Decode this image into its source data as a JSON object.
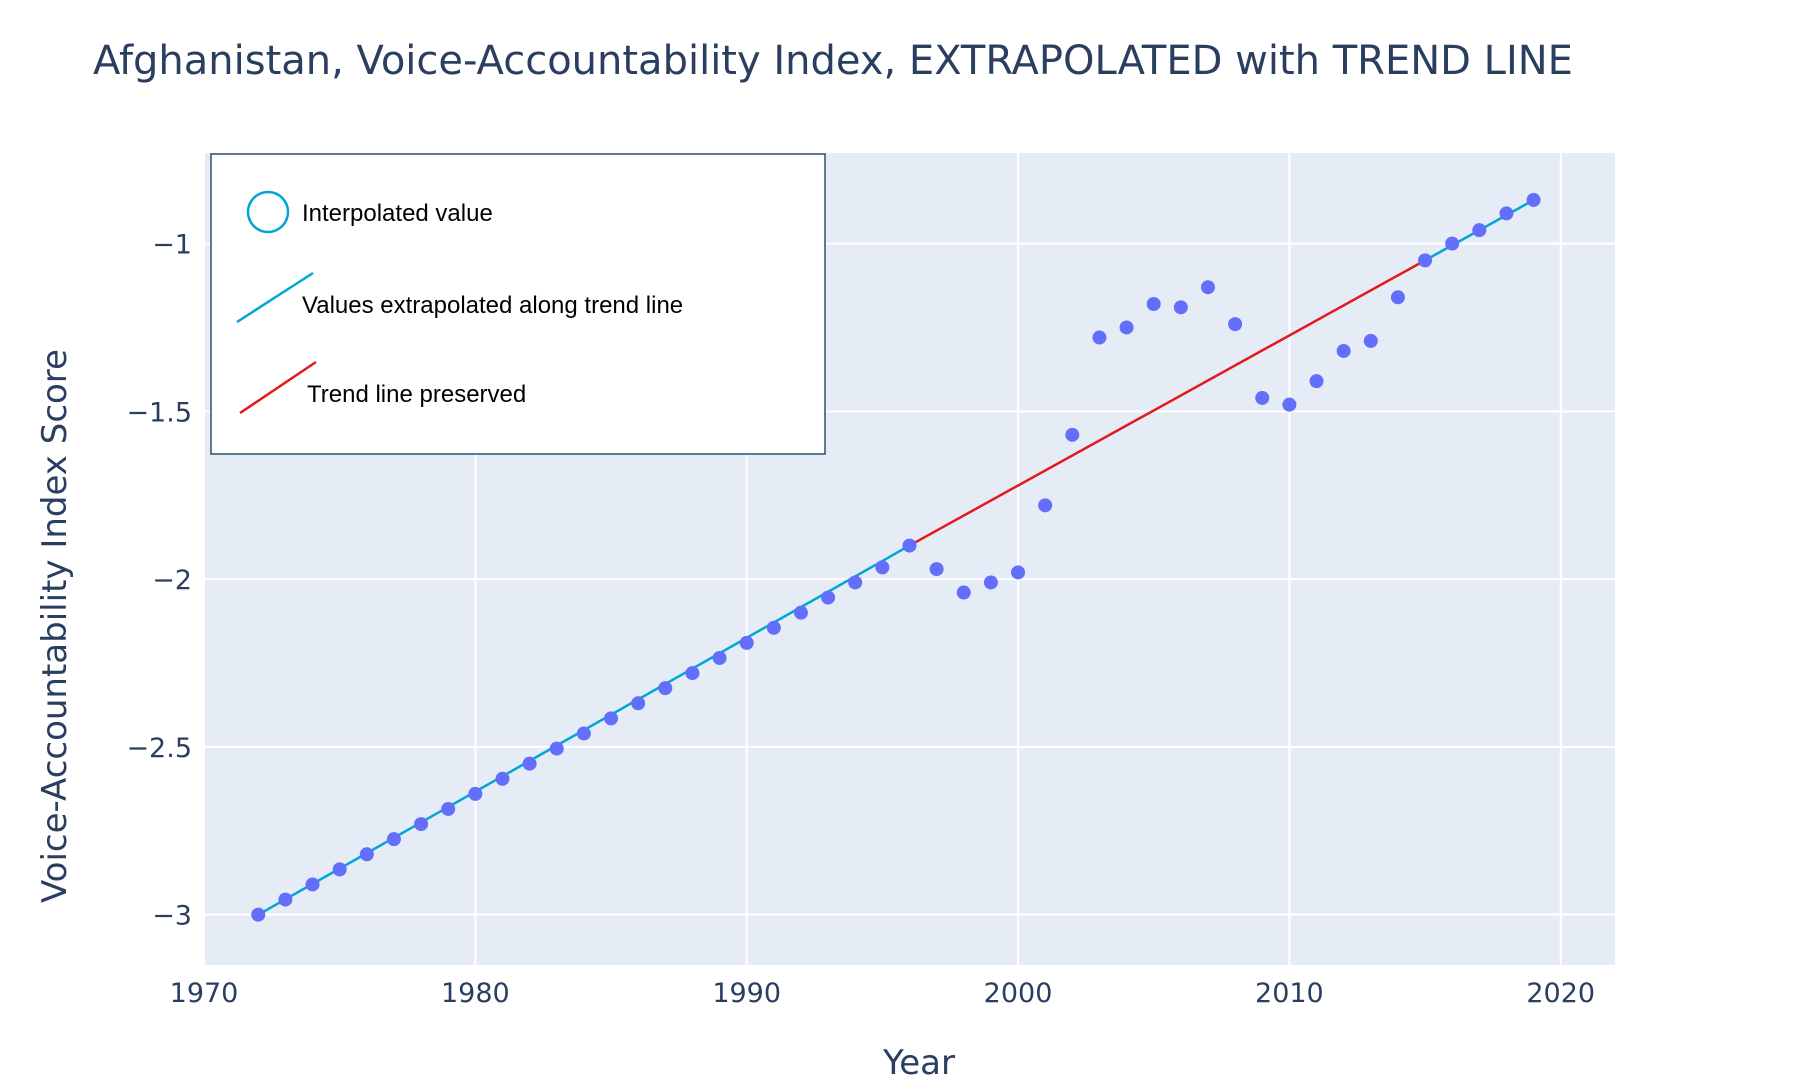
{
  "chart_data": {
    "type": "scatter",
    "title": "Afghanistan, Voice-Accountability Index, EXTRAPOLATED with TREND LINE",
    "xlabel": "Year",
    "ylabel": "Voice-Accountability Index Score",
    "xlim": [
      1970,
      2022
    ],
    "ylim": [
      -3.15,
      -0.73
    ],
    "xticks": [
      1970,
      1980,
      1990,
      2000,
      2010,
      2020
    ],
    "yticks": [
      -3,
      -2.5,
      -2,
      -1.5,
      -1
    ],
    "ytick_labels": [
      "−3",
      "−2.5",
      "−2",
      "−1.5",
      "−1"
    ],
    "grid": true,
    "legend_position": "top-left",
    "colors": {
      "points": "#636efa",
      "extrapolated_line": "#00a6d6",
      "trend_line": "#e31a1c",
      "plot_background": "#e5ecf6",
      "grid": "#ffffff"
    },
    "series": [
      {
        "name": "Interpolated value",
        "mode": "markers",
        "x": [
          1972,
          1973,
          1974,
          1975,
          1976,
          1977,
          1978,
          1979,
          1980,
          1981,
          1982,
          1983,
          1984,
          1985,
          1986,
          1987,
          1988,
          1989,
          1990,
          1991,
          1992,
          1993,
          1994,
          1995,
          1996,
          1997,
          1998,
          1999,
          2000,
          2001,
          2002,
          2003,
          2004,
          2005,
          2006,
          2007,
          2008,
          2009,
          2010,
          2011,
          2012,
          2013,
          2014,
          2015,
          2016,
          2017,
          2018,
          2019
        ],
        "y": [
          -3.0,
          -2.955,
          -2.91,
          -2.865,
          -2.82,
          -2.775,
          -2.73,
          -2.685,
          -2.64,
          -2.595,
          -2.55,
          -2.505,
          -2.46,
          -2.415,
          -2.37,
          -2.325,
          -2.28,
          -2.235,
          -2.19,
          -2.145,
          -2.1,
          -2.055,
          -2.01,
          -1.965,
          -1.9,
          -1.97,
          -2.04,
          -2.01,
          -1.98,
          -1.78,
          -1.57,
          -1.28,
          -1.25,
          -1.18,
          -1.19,
          -1.13,
          -1.24,
          -1.46,
          -1.48,
          -1.41,
          -1.32,
          -1.29,
          -1.16,
          -1.05,
          -1.0,
          -0.96,
          -0.91,
          -0.87
        ]
      },
      {
        "name": "Values extrapolated along trend line",
        "mode": "lines",
        "segments": [
          {
            "x": [
              1972,
              1996
            ],
            "y": [
              -3.0,
              -1.9
            ]
          },
          {
            "x": [
              2015,
              2019
            ],
            "y": [
              -1.05,
              -0.87
            ]
          }
        ]
      },
      {
        "name": "Trend line preserved",
        "mode": "lines",
        "x": [
          1996,
          2015
        ],
        "y": [
          -1.9,
          -1.05
        ]
      }
    ]
  }
}
